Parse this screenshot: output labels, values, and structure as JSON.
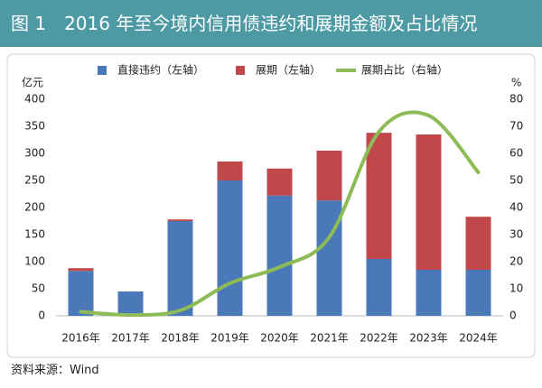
{
  "chart_data": {
    "type": "bar",
    "stacked": true,
    "title": "图 1　2016 年至今境内信用债违约和展期金额及占比情况",
    "y_unit": "亿元",
    "y2_unit": "%",
    "source": "资料来源：Wind",
    "categories": [
      "2016年",
      "2017年",
      "2018年",
      "2019年",
      "2020年",
      "2021年",
      "2022年",
      "2023年",
      "2024年"
    ],
    "series": [
      {
        "name": "直接违约（左轴）",
        "color": "#4a78b8",
        "values": [
          83,
          45,
          175,
          250,
          222,
          213,
          105,
          85,
          85
        ]
      },
      {
        "name": "展期（左轴）",
        "color": "#c0474a",
        "values": [
          5,
          0,
          3,
          35,
          50,
          92,
          233,
          250,
          98
        ]
      },
      {
        "name": "展期占比（右轴）",
        "color": "#8dbb55",
        "type": "line",
        "axis": "y2",
        "values": [
          1.5,
          0.3,
          2,
          12,
          18,
          29,
          68,
          74,
          53
        ]
      }
    ],
    "ylim": [
      0,
      400
    ],
    "yticks": [
      0,
      50,
      100,
      150,
      200,
      250,
      300,
      350,
      400
    ],
    "y2lim": [
      0,
      80
    ],
    "y2ticks": [
      0,
      10,
      20,
      30,
      40,
      50,
      60,
      70,
      80
    ],
    "grid": false
  }
}
